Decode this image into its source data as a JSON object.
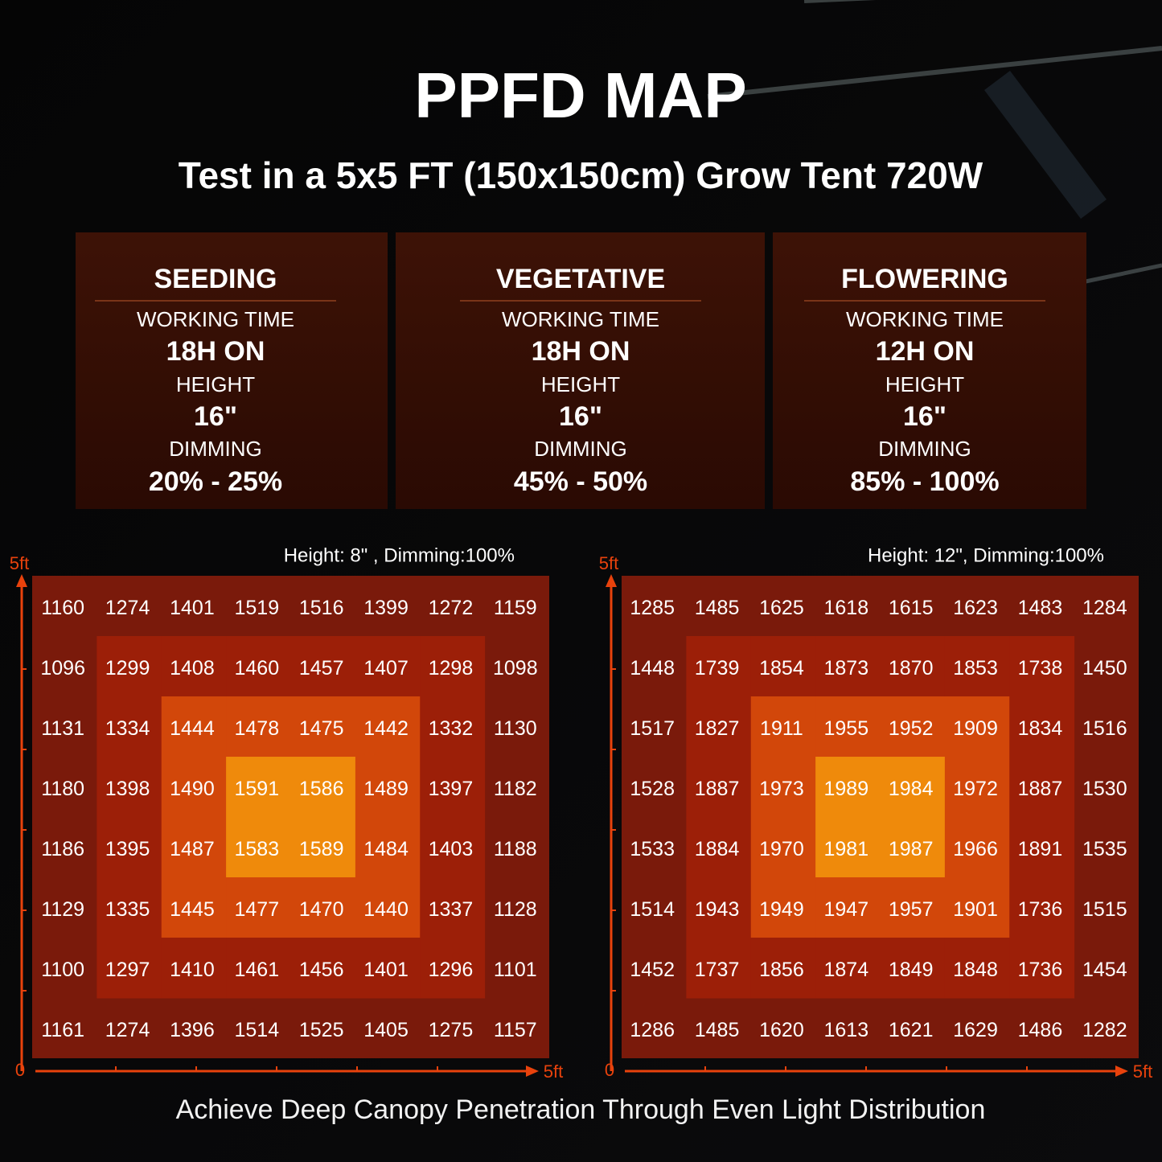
{
  "title": "PPFD MAP",
  "subtitle": "Test in a 5x5 FT (150x150cm) Grow Tent 720W",
  "stages": [
    {
      "name": "SEEDING",
      "working_time_label": "WORKING TIME",
      "working_time": "18H ON",
      "height_label": "HEIGHT",
      "height": "16\"",
      "dimming_label": "DIMMING",
      "dimming": "20% - 25%"
    },
    {
      "name": "VEGETATIVE",
      "working_time_label": "WORKING TIME",
      "working_time": "18H ON",
      "height_label": "HEIGHT",
      "height": "16\"",
      "dimming_label": "DIMMING",
      "dimming": "45% - 50%"
    },
    {
      "name": "FLOWERING",
      "working_time_label": "WORKING TIME",
      "working_time": "12H ON",
      "height_label": "HEIGHT",
      "height": "16\"",
      "dimming_label": "DIMMING",
      "dimming": "85% - 100%"
    }
  ],
  "maps": [
    {
      "caption": "Height: 8\" , Dimming:100%",
      "y_axis_label": "5ft",
      "origin_label": "0",
      "x_axis_label": "5ft",
      "rows": [
        [
          1160,
          1274,
          1401,
          1519,
          1516,
          1399,
          1272,
          1159
        ],
        [
          1096,
          1299,
          1408,
          1460,
          1457,
          1407,
          1298,
          1098
        ],
        [
          1131,
          1334,
          1444,
          1478,
          1475,
          1442,
          1332,
          1130
        ],
        [
          1180,
          1398,
          1490,
          1591,
          1586,
          1489,
          1397,
          1182
        ],
        [
          1186,
          1395,
          1487,
          1583,
          1589,
          1484,
          1403,
          1188
        ],
        [
          1129,
          1335,
          1445,
          1477,
          1470,
          1440,
          1337,
          1128
        ],
        [
          1100,
          1297,
          1410,
          1461,
          1456,
          1401,
          1296,
          1101
        ],
        [
          1161,
          1274,
          1396,
          1514,
          1525,
          1405,
          1275,
          1157
        ]
      ]
    },
    {
      "caption": "Height: 12\", Dimming:100%",
      "y_axis_label": "5ft",
      "origin_label": "0",
      "x_axis_label": "5ft",
      "rows": [
        [
          1285,
          1485,
          1625,
          1618,
          1615,
          1623,
          1483,
          1284
        ],
        [
          1448,
          1739,
          1854,
          1873,
          1870,
          1853,
          1738,
          1450
        ],
        [
          1517,
          1827,
          1911,
          1955,
          1952,
          1909,
          1834,
          1516
        ],
        [
          1528,
          1887,
          1973,
          1989,
          1984,
          1972,
          1887,
          1530
        ],
        [
          1533,
          1884,
          1970,
          1981,
          1987,
          1966,
          1891,
          1535
        ],
        [
          1514,
          1943,
          1949,
          1947,
          1957,
          1901,
          1736,
          1515
        ],
        [
          1452,
          1737,
          1856,
          1874,
          1849,
          1848,
          1736,
          1454
        ],
        [
          1286,
          1485,
          1620,
          1613,
          1621,
          1629,
          1486,
          1282
        ]
      ]
    }
  ],
  "footer": "Achieve Deep Canopy Penetration Through Even Light Distribution"
}
